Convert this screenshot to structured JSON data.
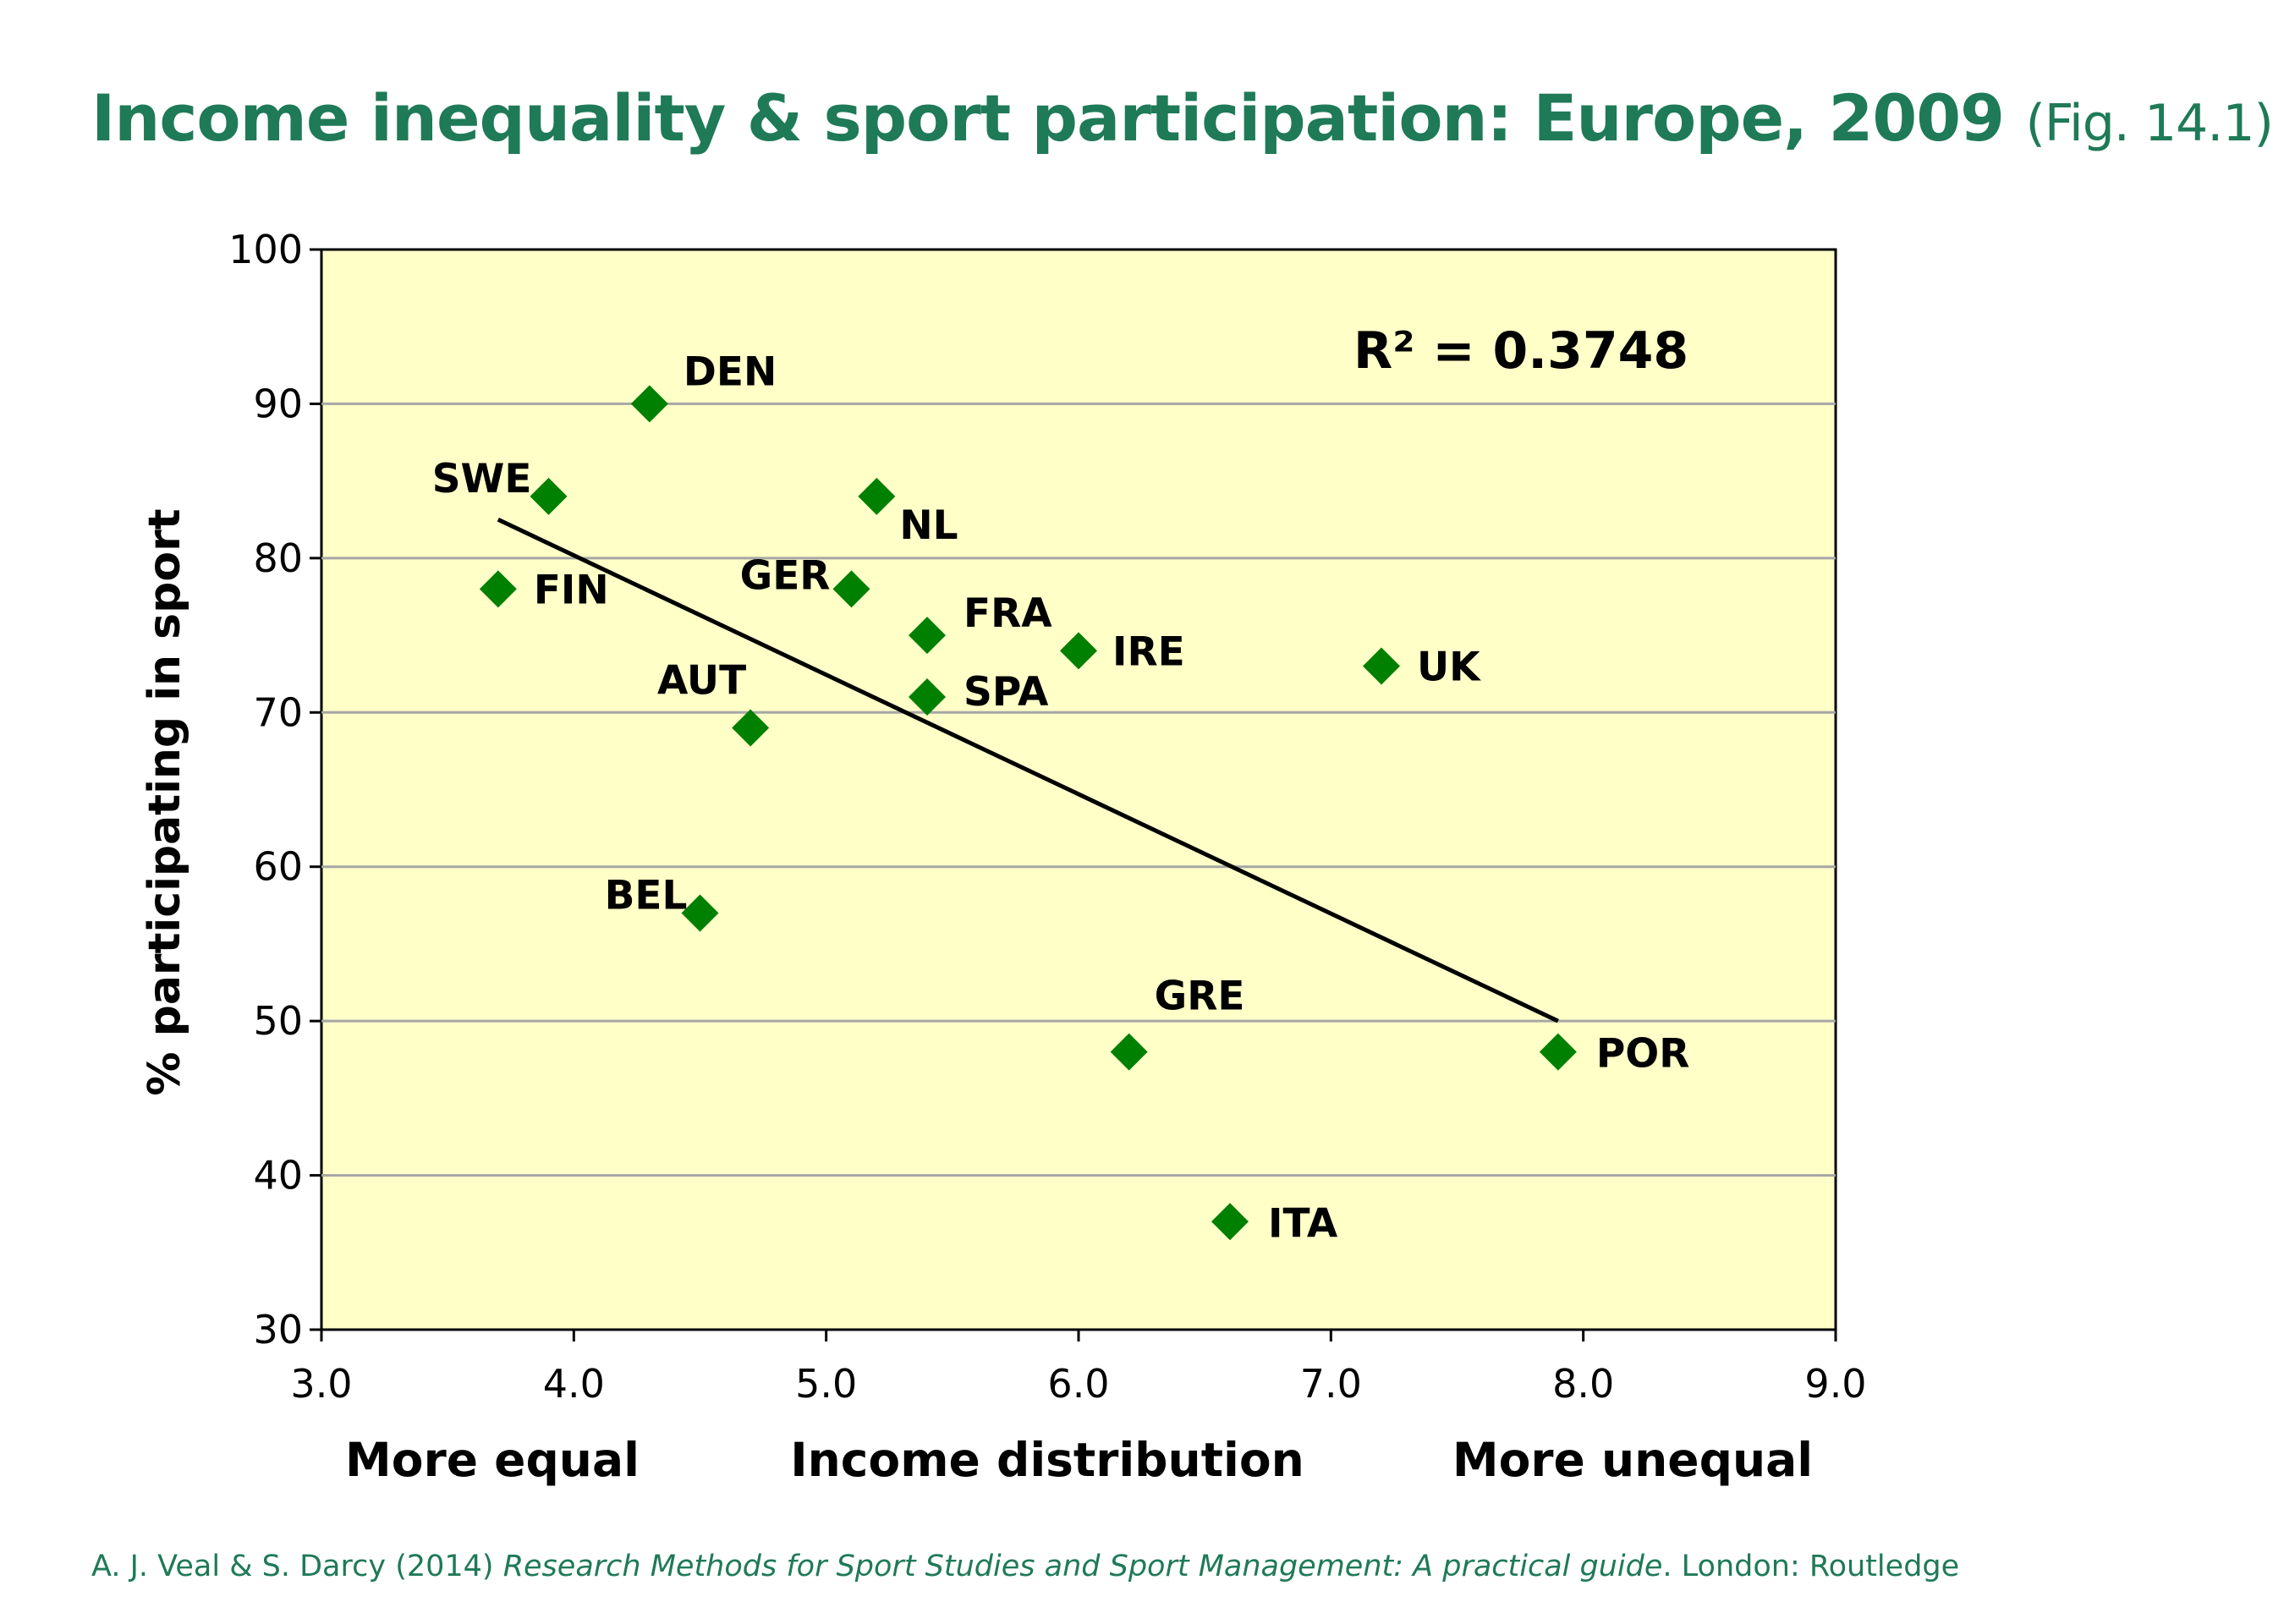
{
  "slide": {
    "title": "Income inequality & sport participation: Europe, 2009",
    "fig_ref": "(Fig. 14.1)",
    "citation_authors": "A. J. Veal & S. Darcy (2014) ",
    "citation_book": "Research Methods for Sport Studies and Sport Management: A practical guide",
    "citation_rest": ". London: Routledge"
  },
  "chart_data": {
    "type": "scatter",
    "ylabel": "% participating in sport",
    "x_category_labels": [
      "More equal",
      "Income distribution",
      "More unequal"
    ],
    "xlim": [
      3.0,
      9.0
    ],
    "ylim": [
      30,
      100
    ],
    "x_ticks": [
      "3.0",
      "4.0",
      "5.0",
      "6.0",
      "7.0",
      "8.0",
      "9.0"
    ],
    "y_ticks": [
      "30",
      "40",
      "50",
      "60",
      "70",
      "80",
      "90",
      "100"
    ],
    "grid": "horizontal",
    "plot_background": "#ffffc8",
    "marker_color": "#008000",
    "annotation": "R² = 0.3748",
    "points": [
      {
        "label": "DEN",
        "x": 4.3,
        "y": 90
      },
      {
        "label": "SWE",
        "x": 3.9,
        "y": 84
      },
      {
        "label": "NL",
        "x": 5.2,
        "y": 84
      },
      {
        "label": "FIN",
        "x": 3.7,
        "y": 78
      },
      {
        "label": "GER",
        "x": 5.1,
        "y": 78
      },
      {
        "label": "FRA",
        "x": 5.4,
        "y": 75
      },
      {
        "label": "IRE",
        "x": 6.0,
        "y": 74
      },
      {
        "label": "UK",
        "x": 7.2,
        "y": 73
      },
      {
        "label": "SPA",
        "x": 5.4,
        "y": 71
      },
      {
        "label": "AUT",
        "x": 4.7,
        "y": 69
      },
      {
        "label": "BEL",
        "x": 4.5,
        "y": 57
      },
      {
        "label": "GRE",
        "x": 6.2,
        "y": 48
      },
      {
        "label": "POR",
        "x": 7.9,
        "y": 48
      },
      {
        "label": "ITA",
        "x": 6.6,
        "y": 37
      }
    ],
    "trendline": {
      "x": [
        3.7,
        7.9
      ],
      "y": [
        82.5,
        50
      ]
    }
  }
}
